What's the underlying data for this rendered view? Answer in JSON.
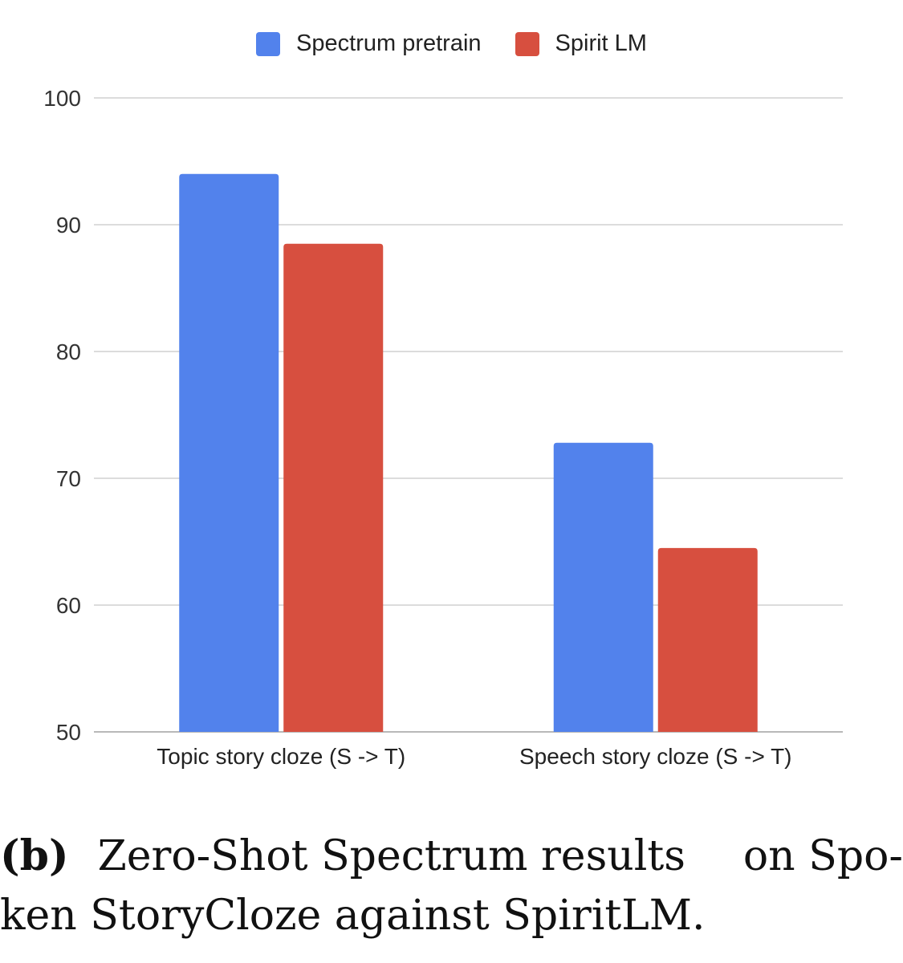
{
  "chart_data": {
    "type": "bar",
    "categories": [
      "Topic story cloze (S -> T)",
      "Speech story cloze (S -> T)"
    ],
    "series": [
      {
        "name": "Spectrum pretrain",
        "color": "#5282EC",
        "values": [
          94.0,
          72.8
        ]
      },
      {
        "name": "Spirit LM",
        "color": "#D74F3F",
        "values": [
          88.5,
          64.5
        ]
      }
    ],
    "ylim": [
      50,
      100
    ],
    "yticks": [
      "100",
      "90",
      "80",
      "70",
      "60",
      "50"
    ],
    "title": "",
    "xlabel": "",
    "ylabel": "",
    "grid": true,
    "legend": "top-center"
  },
  "caption": {
    "label": "(b)",
    "line1": "Zero-Shot Spectrum results on Spo-",
    "line2": "ken StoryCloze against SpiritLM."
  }
}
